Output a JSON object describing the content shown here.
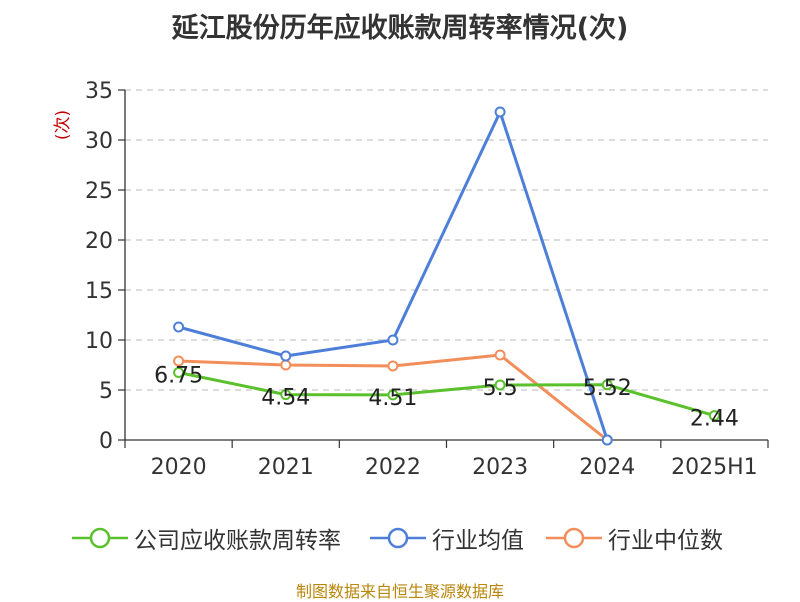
{
  "chart_data": {
    "type": "line",
    "title": "延江股份历年应收账款周转率情况(次)",
    "ylabel": "(次)",
    "xlabel": "",
    "categories": [
      "2020",
      "2021",
      "2022",
      "2023",
      "2024",
      "2025H1"
    ],
    "ylim": [
      0,
      35
    ],
    "yticks": [
      0,
      5,
      10,
      15,
      20,
      25,
      30,
      35
    ],
    "grid": true,
    "legend_position": "bottom",
    "series": [
      {
        "name": "公司应收账款周转率",
        "color": "#5ac12c",
        "values": [
          6.75,
          4.54,
          4.51,
          5.5,
          5.52,
          2.44
        ],
        "labels": [
          "6.75",
          "4.54",
          "4.51",
          "5.5",
          "5.52",
          "2.44"
        ]
      },
      {
        "name": "行业均值",
        "color": "#4e7fd8",
        "values": [
          11.3,
          8.4,
          10.0,
          32.8,
          0.0,
          null
        ]
      },
      {
        "name": "行业中位数",
        "color": "#f28e5a",
        "values": [
          7.9,
          7.5,
          7.4,
          8.5,
          0.0,
          null
        ]
      }
    ]
  },
  "footer": {
    "source": "制图数据来自恒生聚源数据库"
  }
}
